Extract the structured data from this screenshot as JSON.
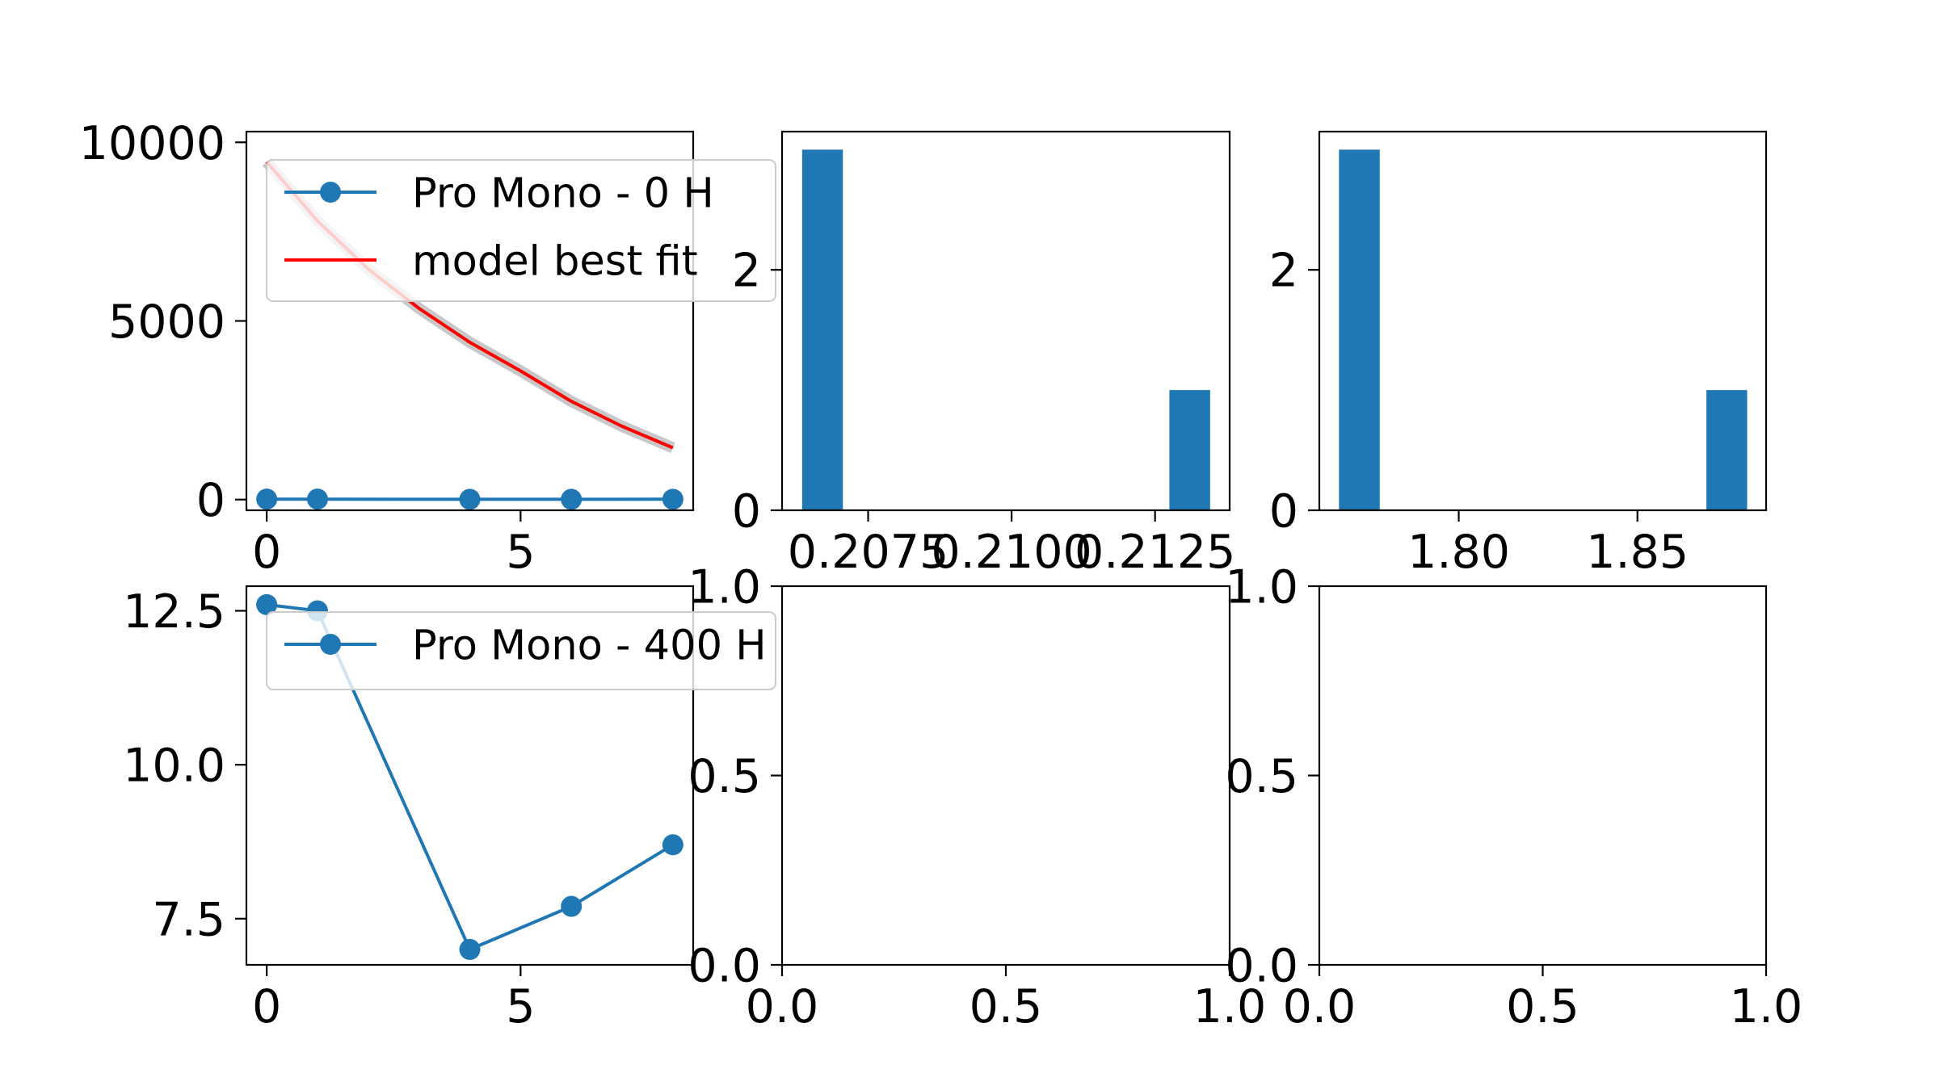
{
  "colors": {
    "series": "#1f77b4",
    "fit": "#ff0000",
    "fit_shadow": "#c8c8c8",
    "axes": "#000000"
  },
  "chart_data": [
    {
      "id": "p00",
      "type": "line",
      "xlim": [
        -0.4,
        8.4
      ],
      "ylim": [
        -300,
        10300
      ],
      "xticks": [
        0,
        5
      ],
      "xticklabels": [
        "0",
        "5"
      ],
      "yticks": [
        0,
        5000,
        10000
      ],
      "yticklabels": [
        "0",
        "5000",
        "10000"
      ],
      "grid": false,
      "legend": {
        "position": "top-right",
        "entries": [
          "Pro Mono - 0 H",
          " model best fit"
        ]
      },
      "series": [
        {
          "name": "Pro Mono - 0 H",
          "kind": "line-marker",
          "x": [
            0,
            1,
            4,
            6,
            8
          ],
          "y": [
            12.6,
            12.5,
            7.0,
            7.7,
            8.7
          ]
        },
        {
          "name": " model best fit",
          "kind": "curve",
          "x": [
            0,
            1,
            2,
            3,
            4,
            5,
            6,
            7,
            8
          ],
          "y": [
            9450,
            7800,
            6450,
            5350,
            4400,
            3600,
            2750,
            2050,
            1450
          ]
        }
      ]
    },
    {
      "id": "p01",
      "type": "bar",
      "xlim": [
        0.206,
        0.2138
      ],
      "ylim": [
        0,
        3.15
      ],
      "xticks": [
        0.2075,
        0.21,
        0.2125
      ],
      "xticklabels": [
        "0.2075",
        "0.2100",
        "0.2125"
      ],
      "yticks": [
        0,
        2
      ],
      "yticklabels": [
        "0",
        "2"
      ],
      "bars": [
        {
          "x0": 0.20635,
          "x1": 0.20706,
          "value": 3
        },
        {
          "x0": 0.21275,
          "x1": 0.21346,
          "value": 1
        }
      ]
    },
    {
      "id": "p02",
      "type": "bar",
      "xlim": [
        1.761,
        1.886
      ],
      "ylim": [
        0,
        3.15
      ],
      "xticks": [
        1.8,
        1.85
      ],
      "xticklabels": [
        "1.80",
        "1.85"
      ],
      "yticks": [
        0,
        2
      ],
      "yticklabels": [
        "0",
        "2"
      ],
      "bars": [
        {
          "x0": 1.7665,
          "x1": 1.7779,
          "value": 3
        },
        {
          "x0": 1.8693,
          "x1": 1.8807,
          "value": 1
        }
      ]
    },
    {
      "id": "p10",
      "type": "line",
      "xlim": [
        -0.4,
        8.4
      ],
      "ylim": [
        6.75,
        12.9
      ],
      "xticks": [
        0,
        5
      ],
      "xticklabels": [
        "0",
        "5"
      ],
      "yticks": [
        7.5,
        10.0,
        12.5
      ],
      "yticklabels": [
        "7.5",
        "10.0",
        "12.5"
      ],
      "grid": false,
      "legend": {
        "position": "top-right",
        "entries": [
          "Pro Mono - 400 H"
        ]
      },
      "series": [
        {
          "name": "Pro Mono - 400 H",
          "kind": "line-marker",
          "x": [
            0,
            1,
            4,
            6,
            8
          ],
          "y": [
            12.6,
            12.5,
            7.0,
            7.7,
            8.7
          ]
        }
      ]
    },
    {
      "id": "p11",
      "type": "line",
      "xlim": [
        0,
        1
      ],
      "ylim": [
        0,
        1
      ],
      "xticks": [
        0,
        0.5,
        1
      ],
      "xticklabels": [
        "0.0",
        "0.5",
        "1.0"
      ],
      "yticks": [
        0,
        0.5,
        1
      ],
      "yticklabels": [
        "0.0",
        "0.5",
        "1.0"
      ],
      "series": []
    },
    {
      "id": "p12",
      "type": "line",
      "xlim": [
        0,
        1
      ],
      "ylim": [
        0,
        1
      ],
      "xticks": [
        0,
        0.5,
        1
      ],
      "xticklabels": [
        "0.0",
        "0.5",
        "1.0"
      ],
      "yticks": [
        0,
        0.5,
        1
      ],
      "yticklabels": [
        "0.0",
        "0.5",
        "1.0"
      ],
      "series": []
    }
  ]
}
